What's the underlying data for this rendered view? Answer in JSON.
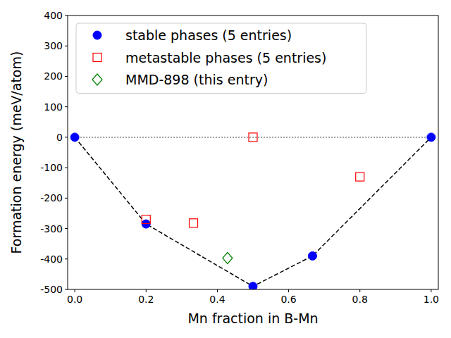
{
  "chart_data": {
    "type": "scatter",
    "x_label": "Mn fraction in B-Mn",
    "y_label": "Formation energy (meV/atom)",
    "xlim": [
      -0.02,
      1.02
    ],
    "ylim": [
      -500,
      400
    ],
    "xticks": [
      {
        "value": 0,
        "label": "0.0"
      },
      {
        "value": 0.2,
        "label": "0.2"
      },
      {
        "value": 0.4,
        "label": "0.4"
      },
      {
        "value": 0.6,
        "label": "0.6"
      },
      {
        "value": 0.8,
        "label": "0.8"
      },
      {
        "value": 1,
        "label": "1.0"
      }
    ],
    "yticks": [
      -500,
      -400,
      -300,
      -200,
      -100,
      0,
      100,
      200,
      300,
      400
    ],
    "grid": false,
    "legend": "upper left",
    "series": [
      {
        "type": "line",
        "color": "#808080",
        "line_style": "dotted",
        "x": [
          0,
          1
        ],
        "values": [
          0,
          0
        ]
      },
      {
        "type": "line",
        "color": "#000000",
        "line_style": "dashed",
        "x": [
          0,
          0.2,
          0.5,
          0.667,
          1
        ],
        "values": [
          0,
          -285,
          -490,
          -390,
          0
        ]
      },
      {
        "name": "stable phases (5 entries)",
        "type": "scatter",
        "color": "#0000ff",
        "marker": "circle",
        "x": [
          0,
          0.2,
          0.5,
          0.667,
          1
        ],
        "values": [
          0,
          -285,
          -490,
          -390,
          0
        ]
      },
      {
        "name": "metastable phases (5 entries)",
        "type": "scatter",
        "color": "#ff0000",
        "marker": "open_square",
        "x": [
          0.2,
          0.333,
          0.5,
          0.8
        ],
        "values": [
          -270,
          -282,
          0,
          -130
        ]
      },
      {
        "name": "MMD-898 (this entry)",
        "type": "scatter",
        "color": "#008000",
        "marker": "open_diamond",
        "x": [
          0.4286
        ],
        "values": [
          -397
        ]
      }
    ]
  }
}
